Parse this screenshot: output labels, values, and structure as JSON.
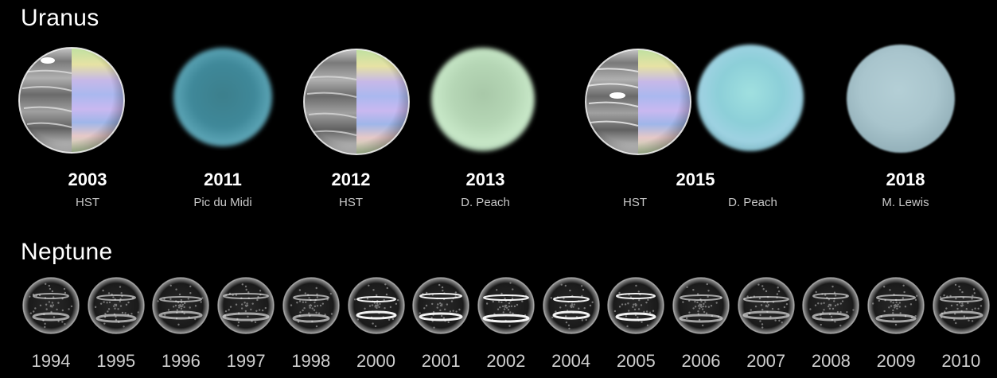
{
  "uranus": {
    "title": "Uranus",
    "observations": [
      {
        "year": "2003",
        "credits": [
          "HST"
        ]
      },
      {
        "year": "2011",
        "credits": [
          "Pic du Midi"
        ]
      },
      {
        "year": "2012",
        "credits": [
          "HST"
        ]
      },
      {
        "year": "2013",
        "credits": [
          "D. Peach"
        ]
      },
      {
        "year": "2015",
        "credits": [
          "HST",
          "D. Peach"
        ]
      },
      {
        "year": "2018",
        "credits": [
          "M. Lewis"
        ]
      }
    ]
  },
  "neptune": {
    "title": "Neptune",
    "years": [
      "1994",
      "1995",
      "1996",
      "1997",
      "1998",
      "2000",
      "2001",
      "2002",
      "2004",
      "2005",
      "2006",
      "2007",
      "2008",
      "2009",
      "2010"
    ]
  },
  "colors": {
    "background": "#000000",
    "title_text": "#ffffff",
    "credit_text": "#c8c8c8"
  }
}
